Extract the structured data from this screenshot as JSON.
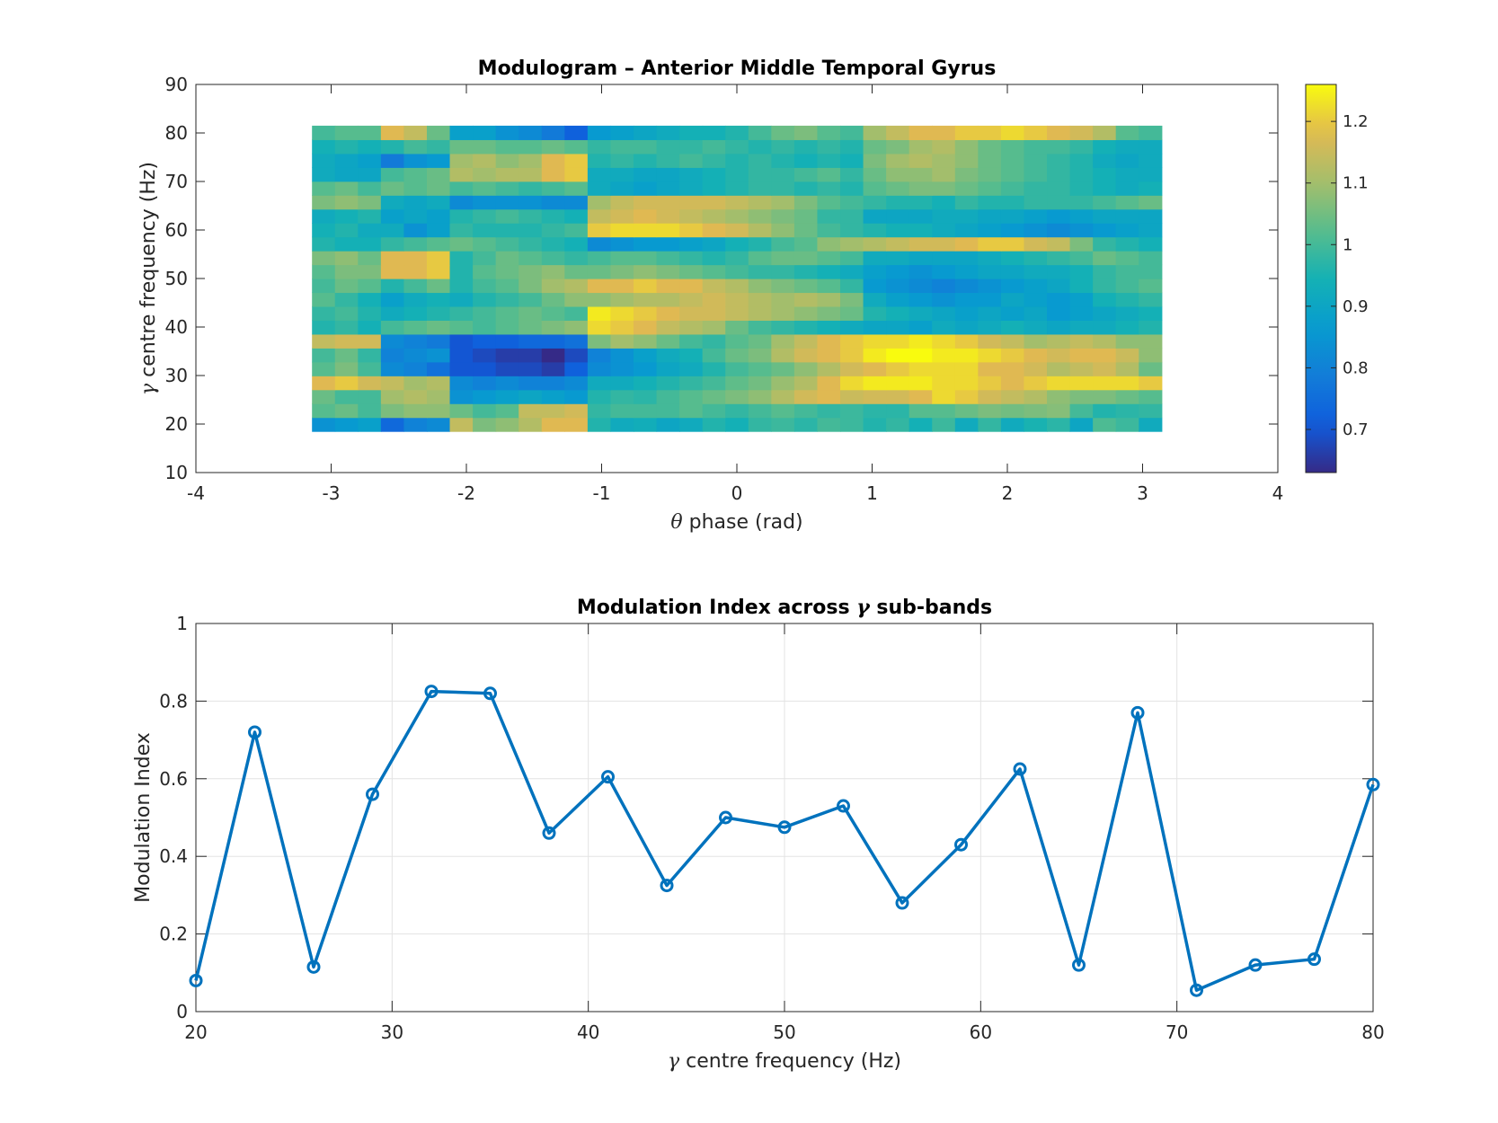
{
  "chart_data": [
    {
      "type": "heatmap",
      "title": "Modulogram – Anterior Middle Temporal Gyrus",
      "xlabel": {
        "symbol": "θ",
        "text": " phase (rad)"
      },
      "ylabel": {
        "symbol": "γ",
        "text": " centre frequency (Hz)"
      },
      "xlim": [
        -4,
        4
      ],
      "ylim": [
        10,
        90
      ],
      "xticks": [
        -4,
        -3,
        -2,
        -1,
        0,
        1,
        2,
        3,
        4
      ],
      "yticks": [
        10,
        20,
        30,
        40,
        50,
        60,
        70,
        80,
        90
      ],
      "x_range": [
        -3.14159,
        3.14159
      ],
      "y_range": [
        18.5,
        81.5
      ],
      "colormap": "parula",
      "clim": [
        0.63,
        1.26
      ],
      "colorbar_ticks": [
        0.7,
        0.8,
        0.9,
        1,
        1.1,
        1.2
      ],
      "values": [
        [
          0.84,
          0.86,
          0.88,
          0.74,
          0.8,
          0.82,
          1.14,
          1.06,
          1.08,
          1.12,
          1.18,
          1.18,
          0.96,
          0.92,
          0.93,
          0.9,
          0.92,
          0.96,
          0.94,
          0.98,
          0.99,
          0.97,
          1.0,
          0.99,
          0.96,
          0.98,
          0.94,
          0.99,
          0.92,
          0.98,
          0.92,
          0.95,
          0.97,
          0.9,
          1.01,
          0.99,
          0.92
        ],
        [
          1.02,
          1.04,
          1.0,
          1.06,
          1.08,
          1.08,
          1.04,
          1.0,
          1.02,
          1.14,
          1.14,
          1.16,
          0.98,
          1.0,
          1.0,
          1.0,
          1.02,
          1.0,
          0.98,
          1.0,
          1.02,
          1.0,
          0.98,
          0.99,
          0.97,
          0.97,
          1.02,
          1.02,
          1.04,
          1.06,
          1.05,
          1.06,
          1.07,
          1.0,
          0.96,
          0.97,
          0.98
        ],
        [
          1.04,
          1.0,
          1.0,
          1.1,
          1.12,
          1.1,
          0.84,
          0.86,
          0.88,
          0.9,
          0.88,
          0.86,
          0.96,
          0.98,
          0.97,
          1.0,
          1.02,
          1.04,
          1.06,
          1.08,
          1.12,
          1.16,
          1.18,
          1.15,
          1.16,
          1.16,
          1.18,
          1.22,
          1.2,
          1.16,
          1.14,
          1.12,
          1.08,
          1.06,
          1.06,
          1.04,
          1.02
        ],
        [
          1.18,
          1.2,
          1.16,
          1.14,
          1.1,
          1.12,
          0.82,
          0.8,
          0.82,
          0.8,
          0.8,
          0.82,
          0.92,
          0.92,
          0.94,
          0.96,
          0.98,
          1.0,
          1.03,
          1.05,
          1.09,
          1.12,
          1.18,
          1.22,
          1.24,
          1.24,
          1.24,
          1.22,
          1.22,
          1.2,
          1.18,
          1.2,
          1.22,
          1.22,
          1.22,
          1.22,
          1.2
        ],
        [
          1.02,
          1.06,
          1.0,
          0.82,
          0.8,
          0.76,
          0.7,
          0.7,
          0.68,
          0.68,
          0.66,
          0.72,
          0.82,
          0.84,
          0.86,
          0.9,
          0.92,
          0.96,
          1.0,
          1.02,
          1.04,
          1.08,
          1.12,
          1.16,
          1.18,
          1.2,
          1.22,
          1.22,
          1.22,
          1.18,
          1.18,
          1.16,
          1.12,
          1.14,
          1.16,
          1.12,
          1.04
        ],
        [
          1.0,
          1.04,
          0.98,
          0.8,
          0.82,
          0.84,
          0.7,
          0.68,
          0.66,
          0.66,
          0.63,
          0.68,
          0.8,
          0.84,
          0.88,
          0.92,
          0.94,
          1.0,
          1.04,
          1.06,
          1.12,
          1.16,
          1.18,
          1.2,
          1.24,
          1.26,
          1.26,
          1.24,
          1.24,
          1.22,
          1.2,
          1.18,
          1.16,
          1.18,
          1.18,
          1.15,
          1.08
        ],
        [
          1.14,
          1.16,
          1.16,
          0.82,
          0.8,
          0.78,
          0.7,
          0.72,
          0.72,
          0.74,
          0.74,
          0.76,
          1.06,
          1.1,
          1.08,
          1.04,
          1.0,
          0.98,
          1.02,
          1.04,
          1.1,
          1.14,
          1.18,
          1.2,
          1.22,
          1.22,
          1.24,
          1.22,
          1.2,
          1.16,
          1.14,
          1.1,
          1.12,
          1.14,
          1.12,
          1.08,
          1.08
        ],
        [
          0.96,
          0.98,
          0.94,
          1.0,
          1.02,
          1.04,
          1.02,
          1.0,
          1.02,
          1.04,
          1.06,
          1.08,
          1.22,
          1.2,
          1.18,
          1.14,
          1.12,
          1.1,
          1.04,
          1.0,
          0.98,
          0.96,
          0.94,
          0.92,
          0.9,
          0.9,
          0.88,
          0.92,
          0.9,
          0.92,
          0.94,
          0.92,
          0.9,
          0.92,
          0.92,
          0.94,
          0.96
        ],
        [
          0.98,
          1.0,
          0.96,
          0.92,
          0.94,
          0.96,
          0.98,
          1.0,
          1.02,
          1.04,
          1.02,
          1.0,
          1.24,
          1.22,
          1.2,
          1.18,
          1.16,
          1.16,
          1.14,
          1.12,
          1.1,
          1.08,
          1.06,
          1.04,
          0.96,
          0.94,
          0.92,
          0.9,
          0.88,
          0.9,
          0.88,
          0.9,
          0.86,
          0.88,
          0.9,
          0.92,
          0.94
        ],
        [
          1.02,
          0.98,
          0.94,
          0.88,
          0.92,
          0.94,
          0.92,
          0.96,
          0.98,
          1.0,
          1.04,
          1.08,
          1.08,
          1.1,
          1.12,
          1.12,
          1.14,
          1.16,
          1.14,
          1.12,
          1.1,
          1.12,
          1.1,
          1.06,
          0.92,
          0.88,
          0.86,
          0.84,
          0.86,
          0.86,
          0.9,
          0.88,
          0.86,
          0.88,
          0.94,
          0.96,
          0.98
        ],
        [
          1.0,
          1.04,
          1.02,
          0.96,
          1.0,
          1.04,
          0.96,
          1.0,
          1.02,
          1.06,
          1.1,
          1.12,
          1.18,
          1.18,
          1.2,
          1.18,
          1.18,
          1.14,
          1.12,
          1.08,
          1.06,
          1.04,
          1.02,
          0.98,
          0.86,
          0.84,
          0.82,
          0.8,
          0.82,
          0.84,
          0.86,
          0.88,
          0.9,
          0.94,
          0.98,
          1.0,
          1.02
        ],
        [
          1.02,
          1.06,
          1.06,
          1.18,
          1.18,
          1.2,
          0.96,
          1.02,
          1.04,
          1.06,
          1.08,
          1.04,
          1.04,
          1.06,
          1.08,
          1.06,
          1.04,
          1.02,
          1.0,
          0.98,
          0.98,
          0.96,
          0.94,
          0.92,
          0.88,
          0.86,
          0.84,
          0.86,
          0.88,
          0.9,
          0.9,
          0.92,
          0.92,
          0.94,
          0.98,
          1.0,
          1.0
        ],
        [
          1.06,
          1.08,
          1.04,
          1.18,
          1.18,
          1.2,
          0.96,
          1.0,
          1.04,
          1.02,
          1.0,
          0.98,
          1.0,
          1.02,
          1.02,
          1.0,
          0.98,
          0.96,
          0.98,
          1.02,
          1.04,
          1.04,
          1.02,
          1.0,
          0.92,
          0.92,
          0.9,
          0.9,
          0.9,
          0.92,
          0.94,
          0.96,
          0.98,
          1.0,
          1.04,
          1.02,
          1.0
        ],
        [
          0.96,
          0.94,
          0.94,
          0.98,
          1.0,
          1.02,
          1.04,
          1.02,
          1.0,
          0.98,
          0.96,
          0.94,
          0.82,
          0.84,
          0.86,
          0.86,
          0.88,
          0.9,
          0.94,
          0.96,
          1.0,
          1.02,
          1.08,
          1.1,
          1.12,
          1.14,
          1.16,
          1.16,
          1.18,
          1.2,
          1.2,
          1.16,
          1.14,
          1.06,
          0.98,
          0.96,
          0.94
        ],
        [
          0.94,
          0.96,
          0.92,
          0.92,
          0.84,
          0.88,
          0.98,
          0.96,
          0.96,
          0.96,
          0.98,
          1.0,
          1.2,
          1.22,
          1.22,
          1.22,
          1.2,
          1.18,
          1.16,
          1.12,
          1.08,
          1.04,
          1.0,
          0.98,
          0.96,
          0.94,
          0.94,
          0.92,
          0.9,
          0.88,
          0.86,
          0.84,
          0.82,
          0.84,
          0.86,
          0.88,
          0.9
        ],
        [
          0.92,
          0.94,
          0.96,
          0.88,
          0.9,
          0.88,
          0.96,
          0.98,
          1.0,
          0.98,
          0.96,
          0.94,
          1.14,
          1.16,
          1.18,
          1.16,
          1.14,
          1.12,
          1.1,
          1.08,
          1.06,
          1.04,
          0.98,
          0.98,
          0.9,
          0.9,
          0.9,
          0.92,
          0.92,
          0.9,
          0.9,
          0.88,
          0.86,
          0.88,
          0.9,
          0.9,
          0.9
        ],
        [
          1.06,
          1.08,
          1.06,
          0.92,
          0.9,
          0.92,
          0.82,
          0.84,
          0.84,
          0.84,
          0.82,
          0.82,
          1.1,
          1.14,
          1.16,
          1.16,
          1.16,
          1.16,
          1.14,
          1.12,
          1.1,
          1.06,
          1.02,
          1.0,
          0.98,
          0.96,
          0.96,
          0.94,
          0.98,
          0.96,
          0.96,
          0.98,
          0.98,
          0.98,
          1.0,
          1.02,
          1.04
        ],
        [
          1.02,
          1.04,
          1.0,
          1.04,
          1.02,
          1.04,
          1.0,
          1.02,
          1.0,
          0.98,
          1.0,
          1.02,
          0.92,
          0.9,
          0.88,
          0.9,
          0.92,
          0.94,
          0.96,
          0.98,
          0.98,
          0.96,
          0.98,
          0.96,
          1.02,
          1.04,
          1.06,
          1.06,
          1.04,
          1.02,
          1.0,
          0.98,
          0.98,
          0.96,
          0.94,
          0.92,
          0.94
        ],
        [
          0.92,
          0.9,
          0.9,
          1.0,
          1.02,
          1.04,
          1.12,
          1.1,
          1.12,
          1.12,
          1.18,
          1.2,
          0.92,
          0.92,
          0.9,
          0.9,
          0.92,
          0.94,
          0.96,
          0.98,
          0.98,
          1.0,
          1.02,
          0.98,
          1.04,
          1.08,
          1.08,
          1.1,
          1.06,
          1.04,
          1.02,
          1.0,
          0.98,
          0.96,
          0.94,
          0.92,
          0.92
        ],
        [
          0.92,
          0.9,
          0.88,
          0.78,
          0.84,
          0.86,
          1.1,
          1.12,
          1.08,
          1.1,
          1.18,
          1.2,
          0.96,
          0.98,
          0.96,
          0.98,
          1.0,
          0.98,
          0.96,
          0.98,
          0.96,
          0.94,
          0.96,
          0.94,
          1.06,
          1.1,
          1.12,
          1.1,
          1.08,
          1.04,
          1.02,
          1.0,
          0.98,
          0.96,
          0.92,
          0.9,
          0.92
        ],
        [
          0.94,
          0.96,
          0.94,
          0.96,
          1.0,
          0.98,
          1.04,
          1.04,
          1.02,
          1.02,
          1.04,
          1.02,
          0.98,
          1.0,
          1.0,
          0.98,
          0.98,
          1.0,
          0.98,
          0.96,
          0.98,
          0.96,
          0.98,
          0.96,
          1.04,
          1.06,
          1.1,
          1.12,
          1.08,
          1.04,
          1.02,
          1.0,
          1.0,
          0.98,
          0.94,
          0.92,
          0.92
        ],
        [
          1.0,
          1.02,
          1.02,
          1.18,
          1.14,
          1.04,
          0.88,
          0.88,
          0.84,
          0.82,
          0.78,
          0.72,
          0.86,
          0.88,
          0.9,
          0.92,
          0.94,
          0.94,
          0.96,
          1.0,
          1.04,
          1.06,
          1.02,
          1.0,
          1.1,
          1.14,
          1.18,
          1.18,
          1.2,
          1.2,
          1.22,
          1.2,
          1.18,
          1.16,
          1.12,
          1.02,
          1.0
        ]
      ]
    },
    {
      "type": "line",
      "title": {
        "pre": "Modulation Index across ",
        "symbol": "γ",
        "post": " sub-bands"
      },
      "xlabel": {
        "symbol": "γ",
        "text": " centre frequency (Hz)"
      },
      "ylabel": "Modulation Index",
      "xlim": [
        20,
        80
      ],
      "ylim": [
        0,
        1
      ],
      "xticks": [
        20,
        30,
        40,
        50,
        60,
        70,
        80
      ],
      "yticks": [
        0,
        0.2,
        0.4,
        0.6,
        0.8,
        1
      ],
      "grid": true,
      "marker": "circle",
      "color": "#0072BD",
      "x": [
        20,
        23,
        26,
        29,
        32,
        35,
        38,
        41,
        44,
        47,
        50,
        53,
        56,
        59,
        62,
        65,
        68,
        71,
        74,
        77,
        80
      ],
      "y": [
        0.08,
        0.72,
        0.115,
        0.56,
        0.825,
        0.82,
        0.46,
        0.605,
        0.325,
        0.5,
        0.475,
        0.53,
        0.28,
        0.43,
        0.625,
        0.12,
        0.77,
        0.055,
        0.12,
        0.135,
        0.585
      ]
    }
  ]
}
